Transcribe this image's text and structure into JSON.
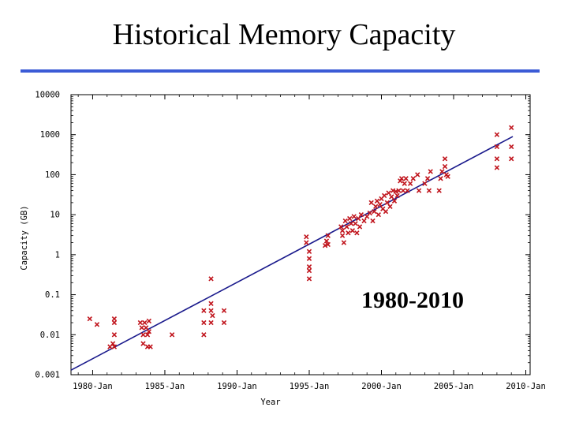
{
  "slide": {
    "title": "Historical Memory Capacity"
  },
  "chart_data": {
    "type": "scatter",
    "title": "",
    "xlabel": "Year",
    "ylabel": "Capacity (GB)",
    "y_scale": "log10",
    "xlim": [
      1978.5,
      2010.3
    ],
    "ylim": [
      0.001,
      10000
    ],
    "x_ticks": [
      1980,
      1985,
      1990,
      1995,
      2000,
      2005,
      2010
    ],
    "x_tick_labels": [
      "1980-Jan",
      "1985-Jan",
      "1990-Jan",
      "1995-Jan",
      "2000-Jan",
      "2005-Jan",
      "2010-Jan"
    ],
    "y_ticks": [
      0.001,
      0.01,
      0.1,
      1,
      10,
      100,
      1000,
      10000
    ],
    "y_tick_labels": [
      "0.001",
      "0.01",
      "0.1",
      "1",
      "10",
      "100",
      "1000",
      "10000"
    ],
    "annotation": "1980-2010",
    "series": [
      {
        "name": "Capacity (GB)",
        "color": "#c0141c",
        "marker": "x",
        "points": [
          [
            1979.8,
            0.025
          ],
          [
            1980.3,
            0.018
          ],
          [
            1981.2,
            0.005
          ],
          [
            1981.4,
            0.006
          ],
          [
            1981.5,
            0.025
          ],
          [
            1981.5,
            0.02
          ],
          [
            1981.5,
            0.01
          ],
          [
            1981.5,
            0.005
          ],
          [
            1983.3,
            0.02
          ],
          [
            1983.4,
            0.015
          ],
          [
            1983.5,
            0.01
          ],
          [
            1983.5,
            0.006
          ],
          [
            1983.6,
            0.02
          ],
          [
            1983.7,
            0.015
          ],
          [
            1983.8,
            0.01
          ],
          [
            1983.8,
            0.005
          ],
          [
            1983.9,
            0.022
          ],
          [
            1983.9,
            0.012
          ],
          [
            1984.0,
            0.005
          ],
          [
            1985.5,
            0.01
          ],
          [
            1987.7,
            0.04
          ],
          [
            1987.7,
            0.02
          ],
          [
            1987.7,
            0.01
          ],
          [
            1988.2,
            0.25
          ],
          [
            1988.2,
            0.06
          ],
          [
            1988.2,
            0.04
          ],
          [
            1988.2,
            0.02
          ],
          [
            1988.3,
            0.03
          ],
          [
            1989.1,
            0.04
          ],
          [
            1989.1,
            0.02
          ],
          [
            1994.8,
            2.8
          ],
          [
            1994.8,
            2.0
          ],
          [
            1995.0,
            1.2
          ],
          [
            1995.0,
            0.8
          ],
          [
            1995.0,
            0.5
          ],
          [
            1995.0,
            0.4
          ],
          [
            1995.0,
            0.25
          ],
          [
            1996.1,
            1.7
          ],
          [
            1996.2,
            2.2
          ],
          [
            1996.3,
            3.0
          ],
          [
            1996.3,
            1.8
          ],
          [
            1997.2,
            5.0
          ],
          [
            1997.3,
            4.0
          ],
          [
            1997.3,
            3.0
          ],
          [
            1997.4,
            2.0
          ],
          [
            1997.5,
            7.0
          ],
          [
            1997.6,
            5.0
          ],
          [
            1997.7,
            3.5
          ],
          [
            1997.8,
            8.0
          ],
          [
            1997.9,
            6.0
          ],
          [
            1998.0,
            4.0
          ],
          [
            1998.1,
            9.0
          ],
          [
            1998.2,
            6.0
          ],
          [
            1998.3,
            3.5
          ],
          [
            1998.4,
            8.0
          ],
          [
            1998.5,
            5.0
          ],
          [
            1998.6,
            10.0
          ],
          [
            1998.8,
            7.0
          ],
          [
            1999.0,
            9.0
          ],
          [
            1999.2,
            11.0
          ],
          [
            1999.3,
            20.0
          ],
          [
            1999.4,
            7.0
          ],
          [
            1999.5,
            12.0
          ],
          [
            1999.6,
            16.0
          ],
          [
            1999.7,
            22.0
          ],
          [
            1999.8,
            10.0
          ],
          [
            1999.9,
            18.0
          ],
          [
            2000.0,
            25.0
          ],
          [
            2000.1,
            14.0
          ],
          [
            2000.2,
            30.0
          ],
          [
            2000.3,
            12.0
          ],
          [
            2000.4,
            20.0
          ],
          [
            2000.5,
            35.0
          ],
          [
            2000.6,
            16.0
          ],
          [
            2000.7,
            28.0
          ],
          [
            2000.8,
            40.0
          ],
          [
            2000.9,
            22.0
          ],
          [
            2001.0,
            38.0
          ],
          [
            2001.1,
            30.0
          ],
          [
            2001.2,
            40.0
          ],
          [
            2001.3,
            70.0
          ],
          [
            2001.4,
            80.0
          ],
          [
            2001.5,
            40.0
          ],
          [
            2001.6,
            60.0
          ],
          [
            2001.7,
            80.0
          ],
          [
            2001.8,
            40.0
          ],
          [
            2002.0,
            60.0
          ],
          [
            2002.2,
            80.0
          ],
          [
            2002.5,
            100.0
          ],
          [
            2002.6,
            40.0
          ],
          [
            2003.0,
            60.0
          ],
          [
            2003.2,
            80.0
          ],
          [
            2003.3,
            40.0
          ],
          [
            2003.4,
            120.0
          ],
          [
            2004.0,
            40.0
          ],
          [
            2004.1,
            80.0
          ],
          [
            2004.2,
            120.0
          ],
          [
            2004.4,
            250.0
          ],
          [
            2004.4,
            160.0
          ],
          [
            2004.5,
            100.0
          ],
          [
            2004.6,
            90.0
          ],
          [
            2008.0,
            1000.0
          ],
          [
            2008.0,
            500.0
          ],
          [
            2008.0,
            250.0
          ],
          [
            2008.0,
            150.0
          ],
          [
            2009.0,
            1500.0
          ],
          [
            2009.0,
            500.0
          ],
          [
            2009.0,
            250.0
          ]
        ]
      },
      {
        "name": "Trend",
        "type": "line",
        "color": "#1a1a8c",
        "points": [
          [
            1978.5,
            0.0013
          ],
          [
            2009.1,
            900.0
          ]
        ]
      }
    ]
  }
}
